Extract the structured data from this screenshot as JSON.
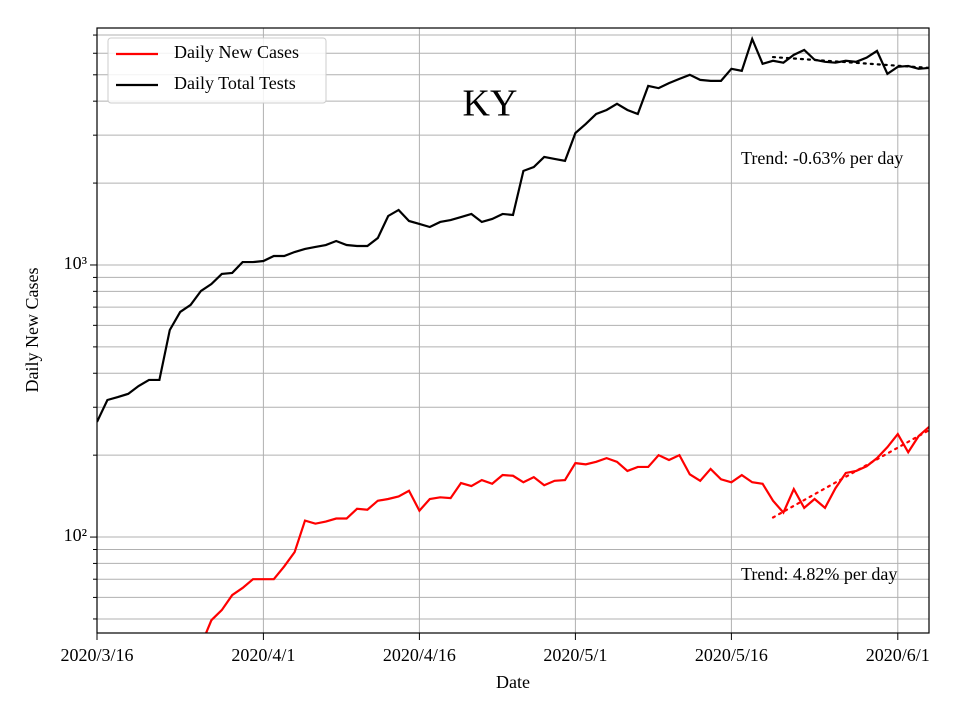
{
  "chart_data": {
    "type": "line",
    "title": "KY",
    "xlabel": "Date",
    "ylabel": "Daily New Cases",
    "log_y": true,
    "grid": true,
    "legend": "upper left",
    "x": [
      "2020-03-16",
      "2020-03-17",
      "2020-03-18",
      "2020-03-19",
      "2020-03-20",
      "2020-03-21",
      "2020-03-22",
      "2020-03-23",
      "2020-03-24",
      "2020-03-25",
      "2020-03-26",
      "2020-03-27",
      "2020-03-28",
      "2020-03-29",
      "2020-03-30",
      "2020-03-31",
      "2020-04-01",
      "2020-04-02",
      "2020-04-03",
      "2020-04-04",
      "2020-04-05",
      "2020-04-06",
      "2020-04-07",
      "2020-04-08",
      "2020-04-09",
      "2020-04-10",
      "2020-04-11",
      "2020-04-12",
      "2020-04-13",
      "2020-04-14",
      "2020-04-15",
      "2020-04-16",
      "2020-04-17",
      "2020-04-18",
      "2020-04-19",
      "2020-04-20",
      "2020-04-21",
      "2020-04-22",
      "2020-04-23",
      "2020-04-24",
      "2020-04-25",
      "2020-04-26",
      "2020-04-27",
      "2020-04-28",
      "2020-04-29",
      "2020-04-30",
      "2020-05-01",
      "2020-05-02",
      "2020-05-03",
      "2020-05-04",
      "2020-05-05",
      "2020-05-06",
      "2020-05-07",
      "2020-05-08",
      "2020-05-09",
      "2020-05-10",
      "2020-05-11",
      "2020-05-12",
      "2020-05-13",
      "2020-05-14",
      "2020-05-15",
      "2020-05-16",
      "2020-05-17",
      "2020-05-18",
      "2020-05-19",
      "2020-05-20",
      "2020-05-21",
      "2020-05-22",
      "2020-05-23",
      "2020-05-24",
      "2020-05-25",
      "2020-05-26",
      "2020-05-27",
      "2020-05-28",
      "2020-05-29",
      "2020-05-30",
      "2020-05-31",
      "2020-06-01",
      "2020-06-02",
      "2020-06-03",
      "2020-06-04"
    ],
    "series": [
      {
        "name": "Daily New Cases",
        "color": "#ff0000",
        "values": [
          null,
          null,
          null,
          null,
          null,
          null,
          null,
          null,
          null,
          null,
          40,
          49.5,
          53.9,
          61.2,
          65,
          70,
          70,
          70,
          78,
          88,
          115,
          112,
          114,
          117,
          117,
          127,
          126,
          136,
          138,
          141,
          148,
          125,
          138,
          140,
          139,
          158,
          154,
          162,
          157,
          169,
          168,
          159,
          166,
          155,
          161,
          162,
          187,
          185,
          189,
          195,
          189,
          175,
          181,
          181,
          200,
          192,
          200,
          170,
          161,
          178,
          163,
          159,
          169,
          159,
          157,
          136,
          123,
          150,
          128,
          138,
          128,
          151,
          172,
          175,
          182,
          195,
          214,
          239,
          205,
          235,
          254
        ]
      },
      {
        "name": "Daily Total Tests",
        "color": "#000000",
        "values": [
          265,
          319,
          327,
          336,
          359,
          378,
          378,
          577,
          672,
          713,
          803,
          851,
          927,
          935,
          1025,
          1025,
          1034,
          1079,
          1079,
          1116,
          1145,
          1165,
          1184,
          1225,
          1184,
          1174,
          1174,
          1256,
          1514,
          1593,
          1451,
          1415,
          1379,
          1439,
          1463,
          1500,
          1540,
          1439,
          1476,
          1540,
          1527,
          2217,
          2290,
          2495,
          2453,
          2413,
          3055,
          3299,
          3590,
          3712,
          3911,
          3712,
          3590,
          4550,
          4466,
          4660,
          4830,
          5000,
          4790,
          4750,
          4750,
          5260,
          5170,
          6770,
          5490,
          5630,
          5540,
          5920,
          6170,
          5680,
          5580,
          5540,
          5630,
          5580,
          5780,
          6120,
          5040,
          5350,
          5390,
          5260,
          5300
        ]
      }
    ],
    "trend_lines": [
      {
        "color": "#ff0000",
        "x": [
          "2020-05-20",
          "2020-06-04"
        ],
        "values": [
          118,
          247
        ]
      },
      {
        "color": "#000000",
        "x": [
          "2020-05-20",
          "2020-06-04"
        ],
        "values": [
          5810,
          5300
        ]
      }
    ],
    "annotations": [
      "Trend: -0.63% per day",
      "Trend: 4.82% per day"
    ],
    "xlim": [
      "2020-03-16",
      "2020-06-04"
    ],
    "xticks": [
      {
        "value": "2020-03-16",
        "label": "2020/3/16"
      },
      {
        "value": "2020-04-01",
        "label": "2020/4/1"
      },
      {
        "value": "2020-04-16",
        "label": "2020/4/16"
      },
      {
        "value": "2020-05-01",
        "label": "2020/5/1"
      },
      {
        "value": "2020-05-16",
        "label": "2020/5/16"
      },
      {
        "value": "2020-06-01",
        "label": "2020/6/1"
      }
    ],
    "ylim": [
      44.4,
      7430
    ],
    "yticks": [
      {
        "value": 100,
        "label": "10²"
      },
      {
        "value": 1000,
        "label": "10³"
      }
    ],
    "yminorticks": [
      50,
      60,
      70,
      80,
      90,
      200,
      300,
      400,
      500,
      600,
      700,
      800,
      900,
      2000,
      3000,
      4000,
      5000,
      6000,
      7000
    ]
  }
}
